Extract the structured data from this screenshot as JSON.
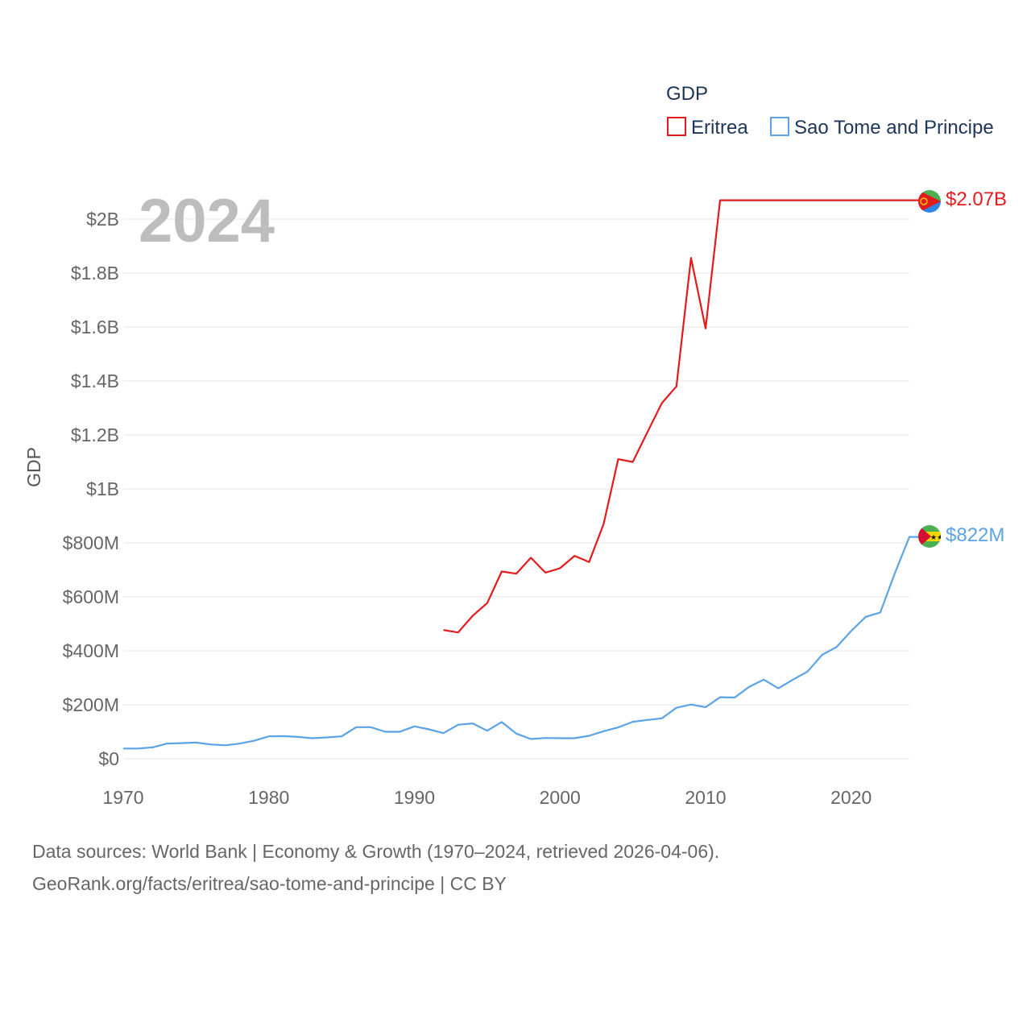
{
  "chart_data": {
    "type": "line",
    "title": "",
    "watermark_year": "2024",
    "ylabel": "GDP",
    "xlabel": "",
    "xlim": [
      1970,
      2024
    ],
    "ylim": [
      0,
      2050000000
    ],
    "x_ticks": [
      1970,
      1980,
      1990,
      2000,
      2010,
      2020
    ],
    "y_ticks": [
      {
        "value": 0,
        "label": "$0"
      },
      {
        "value": 200000000,
        "label": "$200M"
      },
      {
        "value": 400000000,
        "label": "$400M"
      },
      {
        "value": 600000000,
        "label": "$600M"
      },
      {
        "value": 800000000,
        "label": "$800M"
      },
      {
        "value": 1000000000,
        "label": "$1B"
      },
      {
        "value": 1200000000,
        "label": "$1.2B"
      },
      {
        "value": 1400000000,
        "label": "$1.4B"
      },
      {
        "value": 1600000000,
        "label": "$1.6B"
      },
      {
        "value": 1800000000,
        "label": "$1.8B"
      },
      {
        "value": 2000000000,
        "label": "$2B"
      }
    ],
    "legend": {
      "title": "GDP",
      "position": "top-right"
    },
    "series": [
      {
        "name": "Eritrea",
        "color": "#e41a1c",
        "end_label": "$2.07B",
        "x": [
          1992,
          1993,
          1994,
          1995,
          1996,
          1997,
          1998,
          1999,
          2000,
          2001,
          2002,
          2003,
          2004,
          2005,
          2006,
          2007,
          2008,
          2009,
          2010,
          2011,
          2012,
          2013,
          2014,
          2015,
          2016,
          2017,
          2018,
          2019,
          2020,
          2021,
          2022,
          2023,
          2024
        ],
        "values": [
          477000000,
          468000000,
          530000000,
          577000000,
          694000000,
          686000000,
          745000000,
          690000000,
          706000000,
          752000000,
          729000000,
          870000000,
          1110000000,
          1100000000,
          1210000000,
          1318000000,
          1380000000,
          1856000000,
          1595000000,
          2070000000,
          2070000000,
          2070000000,
          2070000000,
          2070000000,
          2070000000,
          2070000000,
          2070000000,
          2070000000,
          2070000000,
          2070000000,
          2070000000,
          2070000000,
          2070000000
        ]
      },
      {
        "name": "Sao Tome and Principe",
        "color": "#5ba3e6",
        "end_label": "$822M",
        "x": [
          1970,
          1971,
          1972,
          1973,
          1974,
          1975,
          1976,
          1977,
          1978,
          1979,
          1980,
          1981,
          1982,
          1983,
          1984,
          1985,
          1986,
          1987,
          1988,
          1989,
          1990,
          1991,
          1992,
          1993,
          1994,
          1995,
          1996,
          1997,
          1998,
          1999,
          2000,
          2001,
          2002,
          2003,
          2004,
          2005,
          2006,
          2007,
          2008,
          2009,
          2010,
          2011,
          2012,
          2013,
          2014,
          2015,
          2016,
          2017,
          2018,
          2019,
          2020,
          2021,
          2022,
          2023,
          2024
        ],
        "values": [
          38000000,
          38000000,
          42000000,
          56000000,
          58000000,
          60000000,
          53000000,
          50000000,
          56000000,
          67000000,
          83000000,
          84000000,
          81000000,
          76000000,
          79000000,
          83000000,
          117000000,
          117000000,
          100000000,
          100000000,
          120000000,
          109000000,
          95000000,
          126000000,
          131000000,
          104000000,
          136000000,
          93000000,
          73000000,
          77000000,
          76000000,
          76000000,
          85000000,
          102000000,
          116000000,
          137000000,
          144000000,
          150000000,
          189000000,
          201000000,
          191000000,
          228000000,
          227000000,
          267000000,
          293000000,
          261000000,
          293000000,
          323000000,
          385000000,
          414000000,
          473000000,
          526000000,
          542000000,
          687000000,
          822000000
        ]
      }
    ]
  },
  "footer": {
    "line1": "Data sources: World Bank | Economy & Growth (1970–2024, retrieved 2026-04-06).",
    "line2": "GeoRank.org/facts/eritrea/sao-tome-and-principe | CC BY"
  }
}
